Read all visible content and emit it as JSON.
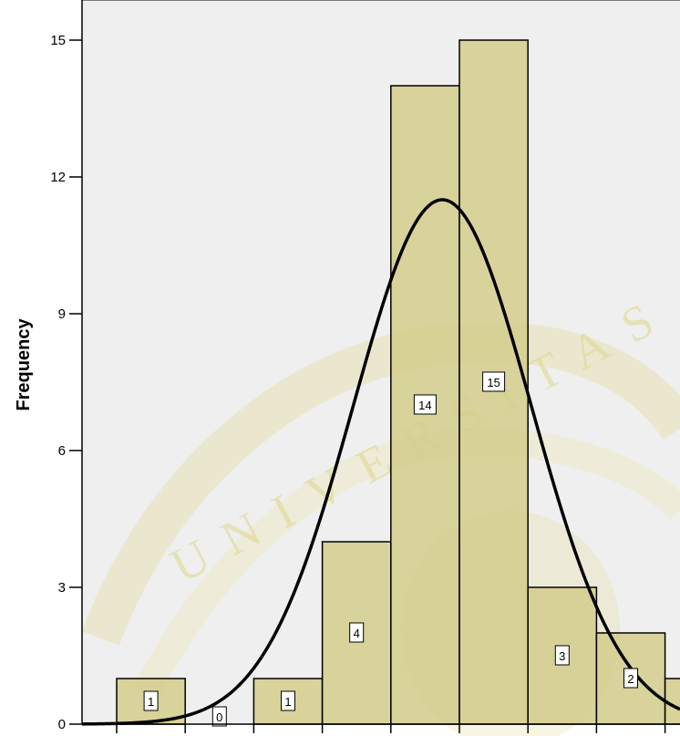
{
  "chart_data": {
    "type": "bar",
    "title": "",
    "xlabel": "",
    "ylabel": "Frequency",
    "ylim": [
      0,
      16
    ],
    "yticks": [
      0,
      3,
      6,
      9,
      12,
      15
    ],
    "grid": false,
    "bins": [
      {
        "index": 0,
        "value": 1,
        "label": "1"
      },
      {
        "index": 1,
        "value": 0,
        "label": "0"
      },
      {
        "index": 2,
        "value": 1,
        "label": "1"
      },
      {
        "index": 3,
        "value": 4,
        "label": "4"
      },
      {
        "index": 4,
        "value": 14,
        "label": "14"
      },
      {
        "index": 5,
        "value": 15,
        "label": "15"
      },
      {
        "index": 6,
        "value": 3,
        "label": "3"
      },
      {
        "index": 7,
        "value": 2,
        "label": "2"
      },
      {
        "index": 8,
        "value": 1,
        "label": ""
      }
    ],
    "normal_curve": {
      "peak_bin": 4.75,
      "peak_value": 11.5,
      "sd_bins": 1.3
    },
    "colors": {
      "plot_bg": "#efefef",
      "bar_fill": "#d3cd8c",
      "bar_stroke": "#000000",
      "curve": "#000000",
      "watermark": "#d9cf73"
    }
  },
  "watermark": {
    "text": "UNIVERSITAS"
  }
}
